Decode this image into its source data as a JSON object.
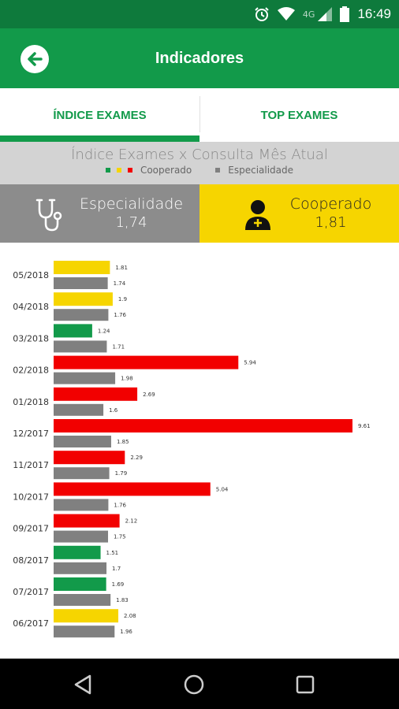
{
  "status_bar": {
    "time": "16:49",
    "network": "4G",
    "icons": [
      "alarm-icon",
      "wifi-icon",
      "signal-icon",
      "battery-icon"
    ]
  },
  "app_bar": {
    "title": "Indicadores",
    "back_icon": "arrow-left-icon"
  },
  "tabs": [
    {
      "label": "ÍNDICE EXAMES",
      "active": true
    },
    {
      "label": "TOP EXAMES",
      "active": false
    }
  ],
  "header": {
    "title": "Índice Exames x Consulta Mês Atual",
    "legend_cooperado": "Cooperado",
    "legend_especialidade": "Especialidade"
  },
  "cards": {
    "especialidade": {
      "label": "Especialidade",
      "value": "1,74",
      "icon": "stethoscope-icon"
    },
    "cooperado": {
      "label": "Cooperado",
      "value": "1,81",
      "icon": "doctor-icon"
    }
  },
  "colors": {
    "green": "#129a4a",
    "dark_green": "#0e7a3c",
    "yellow": "#f6d500",
    "red": "#f20000",
    "gray": "#808080"
  },
  "chart_data": {
    "type": "bar",
    "orientation": "horizontal",
    "categories": [
      "05/2018",
      "04/2018",
      "03/2018",
      "02/2018",
      "01/2018",
      "12/2017",
      "11/2017",
      "10/2017",
      "09/2017",
      "08/2017",
      "07/2017",
      "06/2017"
    ],
    "series": [
      {
        "name": "Cooperado",
        "values": [
          1.81,
          1.9,
          1.24,
          5.94,
          2.69,
          9.61,
          2.29,
          5.04,
          2.12,
          1.51,
          1.69,
          2.08
        ],
        "labels": [
          "1.81",
          "1.9",
          "1.24",
          "5.94",
          "2.69",
          "9.61",
          "2.29",
          "5.04",
          "2.12",
          "1.51",
          "1.69",
          "2.08"
        ],
        "colors": [
          "#f6d500",
          "#f6d500",
          "#129a4a",
          "#f20000",
          "#f20000",
          "#f20000",
          "#f20000",
          "#f20000",
          "#f20000",
          "#129a4a",
          "#129a4a",
          "#f6d500"
        ]
      },
      {
        "name": "Especialidade",
        "values": [
          1.74,
          1.76,
          1.71,
          1.98,
          1.6,
          1.85,
          1.79,
          1.76,
          1.75,
          1.7,
          1.83,
          1.96
        ],
        "labels": [
          "1.74",
          "1.76",
          "1.71",
          "1.98",
          "1.6",
          "1.85",
          "1.79",
          "1.76",
          "1.75",
          "1.7",
          "1.83",
          "1.96"
        ],
        "color": "#808080"
      }
    ],
    "xlim": [
      0,
      9.61
    ]
  }
}
